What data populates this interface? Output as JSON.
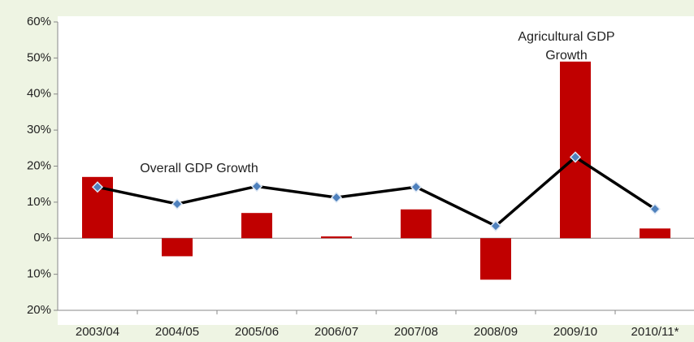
{
  "chart_data": {
    "type": "bar_line",
    "categories": [
      "2003/04",
      "2004/05",
      "2005/06",
      "2006/07",
      "2007/08",
      "2008/09",
      "2009/10",
      "2010/11*"
    ],
    "series": [
      {
        "name": "Agricultural GDP Growth",
        "type": "bar",
        "color": "#c00000",
        "values": [
          17,
          -5,
          7,
          0.5,
          8,
          -11.5,
          49,
          2.7
        ]
      },
      {
        "name": "Overall GDP Growth",
        "type": "line",
        "color": "#000000",
        "marker_color": "#4f81bd",
        "values": [
          14.2,
          9.5,
          14.4,
          11.3,
          14.2,
          3.4,
          22.5,
          8.1
        ]
      }
    ],
    "ylim": [
      -20,
      60
    ],
    "yticks": [
      {
        "value": -20,
        "label": "20%"
      },
      {
        "value": -10,
        "label": "10%"
      },
      {
        "value": 0,
        "label": "0%"
      },
      {
        "value": 10,
        "label": "10%"
      },
      {
        "value": 20,
        "label": "20%"
      },
      {
        "value": 30,
        "label": "30%"
      },
      {
        "value": 40,
        "label": "40%"
      },
      {
        "value": 50,
        "label": "50%"
      },
      {
        "value": 60,
        "label": "60%"
      }
    ]
  }
}
